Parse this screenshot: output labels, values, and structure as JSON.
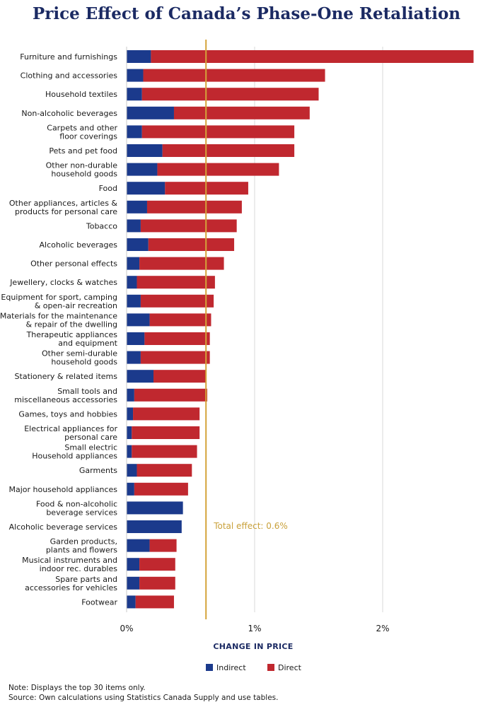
{
  "colors": {
    "indirect": "#1b3a8c",
    "direct": "#c0282f",
    "total_line": "#d4a43a",
    "grid": "#d9d9d9",
    "title": "#1b2a63"
  },
  "footer": {
    "note": "Note: Displays the top 30 items only.",
    "source": "Source: Own calculations using Statistics Canada Supply and use tables."
  },
  "chart_data": {
    "type": "bar",
    "orientation": "horizontal",
    "stacked": true,
    "title": "Price Effect of Canada’s Phase-One Retaliation",
    "xlabel": "CHANGE IN PRICE",
    "ylabel": "",
    "xlim": [
      0,
      2.7
    ],
    "x_ticks": [
      0,
      1,
      2
    ],
    "x_tick_labels": [
      "0%",
      "1%",
      "2%"
    ],
    "grid": true,
    "legend_position": "bottom-center",
    "reference_line": {
      "value": 0.62,
      "label": "Total effect: 0.6%"
    },
    "categories": [
      [
        "Furniture and furnishings"
      ],
      [
        "Clothing and accessories"
      ],
      [
        "Household textiles"
      ],
      [
        "Non-alcoholic beverages"
      ],
      [
        "Carpets and other",
        "floor coverings"
      ],
      [
        "Pets and pet food"
      ],
      [
        "Other non-durable",
        "household goods"
      ],
      [
        "Food"
      ],
      [
        "Other appliances, articles &",
        "products for personal care"
      ],
      [
        "Tobacco"
      ],
      [
        "Alcoholic beverages"
      ],
      [
        "Other personal effects"
      ],
      [
        "Jewellery, clocks & watches"
      ],
      [
        "Equipment for sport, camping",
        "& open-air recreation"
      ],
      [
        "Materials for the maintenance",
        "& repair of the dwelling"
      ],
      [
        "Therapeutic appliances",
        "and equipment"
      ],
      [
        "Other semi-durable",
        "household goods"
      ],
      [
        "Stationery & related items"
      ],
      [
        "Small tools and",
        "miscellaneous accessories"
      ],
      [
        "Games, toys and hobbies"
      ],
      [
        "Electrical appliances for",
        "personal care"
      ],
      [
        "Small electric",
        "Household appliances"
      ],
      [
        "Garments"
      ],
      [
        "Major household appliances"
      ],
      [
        "Food & non-alcoholic",
        "beverage services"
      ],
      [
        "Alcoholic beverage services"
      ],
      [
        "Garden products,",
        "plants and flowers"
      ],
      [
        "Musical instruments and",
        "indoor rec. durables"
      ],
      [
        "Spare parts and",
        "accessories for vehicles"
      ],
      [
        "Footwear"
      ]
    ],
    "series": [
      {
        "name": "Indirect",
        "values": [
          0.19,
          0.13,
          0.12,
          0.37,
          0.12,
          0.28,
          0.24,
          0.3,
          0.16,
          0.11,
          0.17,
          0.1,
          0.08,
          0.11,
          0.18,
          0.14,
          0.11,
          0.21,
          0.06,
          0.05,
          0.04,
          0.04,
          0.08,
          0.06,
          0.44,
          0.43,
          0.18,
          0.1,
          0.1,
          0.07
        ]
      },
      {
        "name": "Direct",
        "values": [
          2.52,
          1.42,
          1.38,
          1.06,
          1.19,
          1.03,
          0.95,
          0.65,
          0.74,
          0.75,
          0.67,
          0.66,
          0.61,
          0.57,
          0.48,
          0.51,
          0.54,
          0.41,
          0.57,
          0.52,
          0.53,
          0.51,
          0.43,
          0.42,
          0.0,
          0.0,
          0.21,
          0.28,
          0.28,
          0.3
        ]
      }
    ]
  }
}
